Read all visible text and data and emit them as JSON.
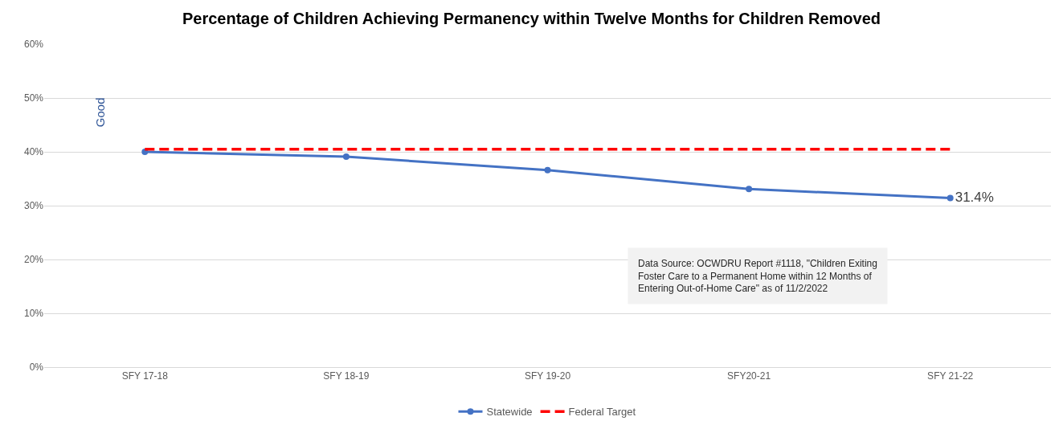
{
  "chart_data": {
    "type": "line",
    "title": "Percentage of Children Achieving Permanency within Twelve Months for Children Removed",
    "categories": [
      "SFY 17-18",
      "SFY 18-19",
      "SFY 19-20",
      "SFY20-21",
      "SFY 21-22"
    ],
    "series": [
      {
        "name": "Statewide",
        "color": "#4472c4",
        "values": [
          40.0,
          39.1,
          36.6,
          33.1,
          31.4
        ],
        "marker": "circle",
        "line_style": "solid",
        "value_labels": [
          null,
          null,
          null,
          null,
          "31.4%"
        ]
      },
      {
        "name": "Federal Target",
        "color": "#ff0000",
        "values": [
          40.5,
          40.5,
          40.5,
          40.5,
          40.5
        ],
        "marker": "none",
        "line_style": "dashed"
      }
    ],
    "ylim": [
      0,
      60
    ],
    "yticks": [
      {
        "value": 0,
        "label": "0%"
      },
      {
        "value": 10,
        "label": "10%"
      },
      {
        "value": 20,
        "label": "20%"
      },
      {
        "value": 30,
        "label": "30%"
      },
      {
        "value": 40,
        "label": "40%"
      },
      {
        "value": 50,
        "label": "50%"
      },
      {
        "value": 60,
        "label": "60%"
      }
    ],
    "grid": "y",
    "legend": "bottom",
    "annotations": [
      "Good",
      "Data Source: OCWDRU Report #1118, \"Children Exiting\nFoster Care to a Permanent Home within 12 Months of\nEntering Out-of-Home Care\" as of 11/2/2022"
    ]
  }
}
